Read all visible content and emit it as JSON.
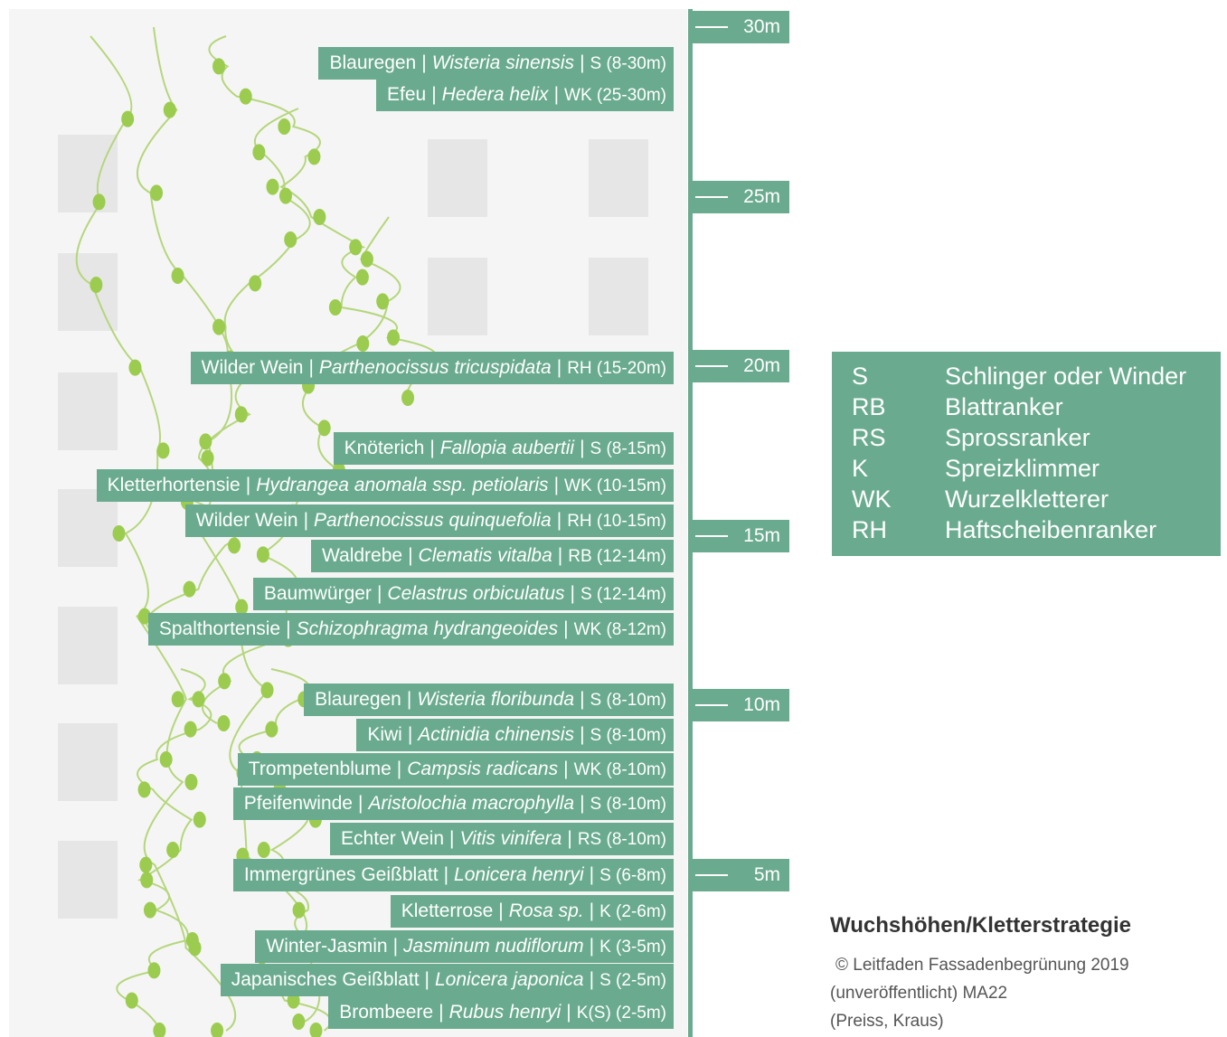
{
  "separator": "|",
  "plants": [
    {
      "name": "Blauregen",
      "latin": "Wisteria sinensis",
      "strategy": "S (8-30m)"
    },
    {
      "name": "Efeu",
      "latin": "Hedera helix",
      "strategy": "WK (25-30m)"
    },
    {
      "name": "Wilder Wein",
      "latin": "Parthenocissus tricuspidata",
      "strategy": "RH (15-20m)"
    },
    {
      "name": "Knöterich",
      "latin": "Fallopia aubertii",
      "strategy": "S (8-15m)"
    },
    {
      "name": "Kletterhortensie",
      "latin": "Hydrangea anomala ssp. petiolaris",
      "strategy": "WK (10-15m)"
    },
    {
      "name": "Wilder Wein",
      "latin": "Parthenocissus quinquefolia",
      "strategy": "RH (10-15m)"
    },
    {
      "name": "Waldrebe",
      "latin": "Clematis vitalba",
      "strategy": "RB (12-14m)"
    },
    {
      "name": "Baumwürger",
      "latin": "Celastrus orbiculatus",
      "strategy": "S (12-14m)"
    },
    {
      "name": "Spalthortensie",
      "latin": "Schizophragma hydrangeoides",
      "strategy": "WK (8-12m)"
    },
    {
      "name": "Blauregen",
      "latin": "Wisteria floribunda",
      "strategy": "S (8-10m)"
    },
    {
      "name": "Kiwi",
      "latin": "Actinidia chinensis",
      "strategy": "S (8-10m)"
    },
    {
      "name": "Trompetenblume",
      "latin": "Campsis radicans",
      "strategy": "WK (8-10m)"
    },
    {
      "name": "Pfeifenwinde",
      "latin": "Aristolochia macrophylla",
      "strategy": "S (8-10m)"
    },
    {
      "name": "Echter Wein",
      "latin": "Vitis vinifera",
      "strategy": "RS (8-10m)"
    },
    {
      "name": "Immergrünes Geißblatt",
      "latin": "Lonicera henryi",
      "strategy": "S (6-8m)"
    },
    {
      "name": "Kletterrose",
      "latin": "Rosa sp.",
      "strategy": "K (2-6m)"
    },
    {
      "name": "Winter-Jasmin",
      "latin": "Jasminum nudiflorum",
      "strategy": "K (3-5m)"
    },
    {
      "name": "Japanisches Geißblatt",
      "latin": "Lonicera japonica",
      "strategy": "S (2-5m)"
    },
    {
      "name": "Brombeere",
      "latin": "Rubus henryi",
      "strategy": "K(S) (2-5m)"
    }
  ],
  "scale": [
    {
      "value": 30,
      "label": "30m"
    },
    {
      "value": 25,
      "label": "25m"
    },
    {
      "value": 20,
      "label": "20m"
    },
    {
      "value": 15,
      "label": "15m"
    },
    {
      "value": 10,
      "label": "10m"
    },
    {
      "value": 5,
      "label": "5m"
    }
  ],
  "legend": [
    {
      "code": "S",
      "meaning": "Schlinger oder Winder"
    },
    {
      "code": "RB",
      "meaning": "Blattranker"
    },
    {
      "code": "RS",
      "meaning": "Sprossranker"
    },
    {
      "code": "K",
      "meaning": "Spreizklimmer"
    },
    {
      "code": "WK",
      "meaning": "Wurzelkletterer"
    },
    {
      "code": "RH",
      "meaning": "Haftscheibenranker"
    }
  ],
  "title": "Wuchshöhen/Kletterstrategie",
  "credit": [
    "© Leitfaden Fassadenbegrünung 2019",
    "(unveröffentlicht) MA22",
    "(Preiss, Kraus)"
  ]
}
